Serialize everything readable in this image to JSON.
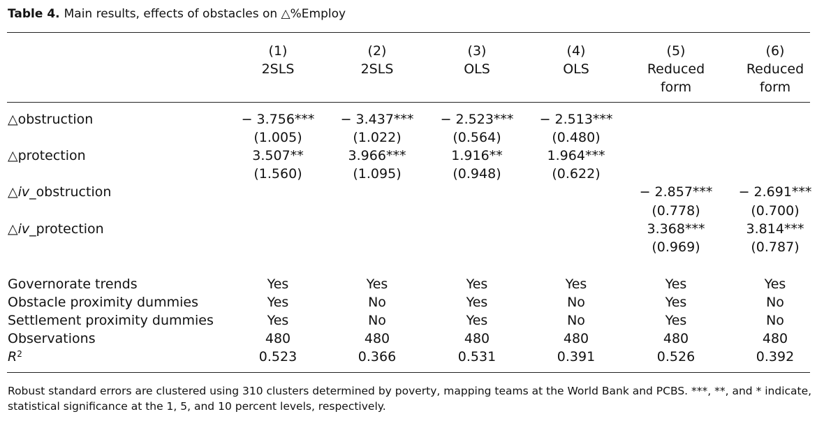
{
  "caption": {
    "label": "Table 4.",
    "text": "Main results, effects of obstacles on △%Employ"
  },
  "columns": [
    {
      "number": "(1)",
      "method": "2SLS",
      "method2": ""
    },
    {
      "number": "(2)",
      "method": "2SLS",
      "method2": ""
    },
    {
      "number": "(3)",
      "method": "OLS",
      "method2": ""
    },
    {
      "number": "(4)",
      "method": "OLS",
      "method2": ""
    },
    {
      "number": "(5)",
      "method": "Reduced",
      "method2": "form"
    },
    {
      "number": "(6)",
      "method": "Reduced",
      "method2": "form"
    }
  ],
  "coef_rows": [
    {
      "prefix": "△",
      "label_italic": "",
      "label": "obstruction",
      "coefs": [
        "− 3.756***",
        "− 3.437***",
        "− 2.523***",
        "− 2.513***",
        "",
        ""
      ],
      "ses": [
        "(1.005)",
        "(1.022)",
        "(0.564)",
        "(0.480)",
        "",
        ""
      ]
    },
    {
      "prefix": "△",
      "label_italic": "",
      "label": "protection",
      "coefs": [
        "3.507**",
        "3.966***",
        "1.916**",
        "1.964***",
        "",
        ""
      ],
      "ses": [
        "(1.560)",
        "(1.095)",
        "(0.948)",
        "(0.622)",
        "",
        ""
      ]
    },
    {
      "prefix": "△",
      "label_italic": "iv",
      "label": "_obstruction",
      "coefs": [
        "",
        "",
        "",
        "",
        "− 2.857***",
        "− 2.691***"
      ],
      "ses": [
        "",
        "",
        "",
        "",
        "(0.778)",
        "(0.700)"
      ]
    },
    {
      "prefix": "△",
      "label_italic": "iv",
      "label": "_protection",
      "coefs": [
        "",
        "",
        "",
        "",
        "3.368***",
        "3.814***"
      ],
      "ses": [
        "",
        "",
        "",
        "",
        "(0.969)",
        "(0.787)"
      ]
    }
  ],
  "stat_rows": [
    {
      "label": "Governorate trends",
      "values": [
        "Yes",
        "Yes",
        "Yes",
        "Yes",
        "Yes",
        "Yes"
      ]
    },
    {
      "label": "Obstacle proximity dummies",
      "values": [
        "Yes",
        "No",
        "Yes",
        "No",
        "Yes",
        "No"
      ]
    },
    {
      "label": "Settlement proximity dummies",
      "values": [
        "Yes",
        "No",
        "Yes",
        "No",
        "Yes",
        "No"
      ]
    },
    {
      "label": "Observations",
      "values": [
        "480",
        "480",
        "480",
        "480",
        "480",
        "480"
      ]
    },
    {
      "label": "R",
      "sup": "2",
      "italic": true,
      "values": [
        "0.523",
        "0.366",
        "0.531",
        "0.391",
        "0.526",
        "0.392"
      ]
    }
  ],
  "note": "Robust standard errors are clustered using 310 clusters determined by poverty, mapping teams at the World Bank and PCBS. ***, **, and * indicate, statistical significance at the 1, 5, and 10 percent levels, respectively."
}
